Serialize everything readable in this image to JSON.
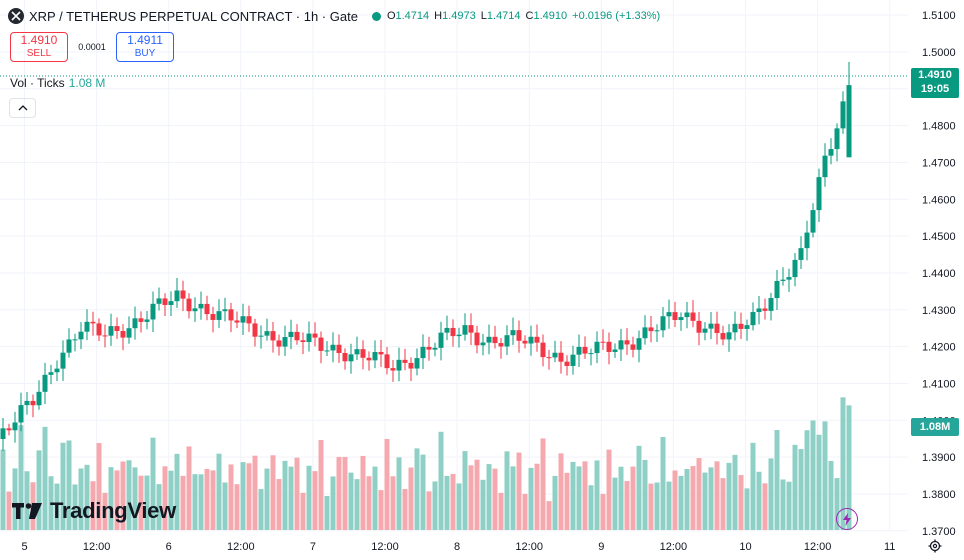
{
  "header": {
    "symbol": "XRP / TETHERUS PERPETUAL CONTRACT · 1h · Gate",
    "ohlc": [
      {
        "k": "O",
        "v": "1.4714"
      },
      {
        "k": "H",
        "v": "1.4973"
      },
      {
        "k": "L",
        "v": "1.4714"
      },
      {
        "k": "C",
        "v": "1.4910"
      }
    ],
    "change": "+0.0196 (+1.33%)"
  },
  "trade": {
    "sell_price": "1.4910",
    "sell_label": "SELL",
    "spread": "0.0001",
    "buy_price": "1.4911",
    "buy_label": "BUY"
  },
  "volume_legend": {
    "label": "Vol · Ticks",
    "value": "1.08 M"
  },
  "price_label": {
    "price": "1.4910",
    "countdown": "19:05"
  },
  "volume_label": "1.08M",
  "logo_text": "TradingView",
  "colors": {
    "up": "#089981",
    "down": "#f23645",
    "vol_up": "#8fd0c6",
    "vol_down": "#f5a9ae",
    "grid": "#f0f3fa",
    "text": "#131722"
  },
  "icons": {
    "symbol": "xrp-logo-icon",
    "collapse": "chevron-up-icon",
    "bolt": "lightning-icon",
    "settings": "gear-icon"
  },
  "chart_data": {
    "type": "candlestick",
    "timeframe": "1h",
    "y_axis_ticks": [
      "1.5100",
      "1.5000",
      "1.4900",
      "1.4800",
      "1.4700",
      "1.4600",
      "1.4500",
      "1.4400",
      "1.4300",
      "1.4200",
      "1.4100",
      "1.4000",
      "1.3900",
      "1.3800",
      "1.3700"
    ],
    "ylim": [
      1.3662,
      1.5122
    ],
    "x_axis_ticks": [
      "5",
      "12:00",
      "6",
      "12:00",
      "7",
      "12:00",
      "8",
      "12:00",
      "9",
      "12:00",
      "10",
      "12:00",
      "11"
    ],
    "anchors": [
      [
        1.394,
        1.393,
        1.388,
        1.398,
        1.405
      ],
      [
        1.404,
        1.413,
        1.418,
        1.41,
        1.414
      ],
      [
        1.418,
        1.424,
        1.42,
        1.41,
        1.412
      ],
      [
        1.416,
        1.422,
        1.425,
        1.43,
        1.436
      ],
      [
        1.45,
        1.456,
        1.447,
        1.432,
        1.428
      ],
      [
        1.424,
        1.427,
        1.43,
        1.428,
        1.423
      ],
      [
        1.42,
        1.416,
        1.412,
        1.407,
        1.41
      ],
      [
        1.415,
        1.42,
        1.418,
        1.416,
        1.413
      ],
      [
        1.408,
        1.4,
        1.393,
        1.392,
        1.389
      ],
      [
        1.388,
        1.385,
        1.386,
        1.387,
        1.385
      ],
      [
        1.384,
        1.388,
        1.388,
        1.392,
        1.394
      ],
      [
        1.392,
        1.398,
        1.405,
        1.417,
        1.425
      ],
      [
        1.423,
        1.426,
        1.43,
        1.433,
        1.431
      ],
      [
        1.428,
        1.425,
        1.423,
        1.422,
        1.42
      ],
      [
        1.419,
        1.417,
        1.414,
        1.418,
        1.422
      ],
      [
        1.424,
        1.422,
        1.422,
        1.42,
        1.417
      ],
      [
        1.418,
        1.42,
        1.422,
        1.425,
        1.429
      ],
      [
        1.426,
        1.422,
        1.428,
        1.437,
        1.444
      ],
      [
        1.471,
        1.491
      ]
    ],
    "volume_scale": [
      0,
      1.3
    ],
    "last_volume": "1.08M",
    "last_price": 1.491,
    "countdown": "19:05"
  }
}
